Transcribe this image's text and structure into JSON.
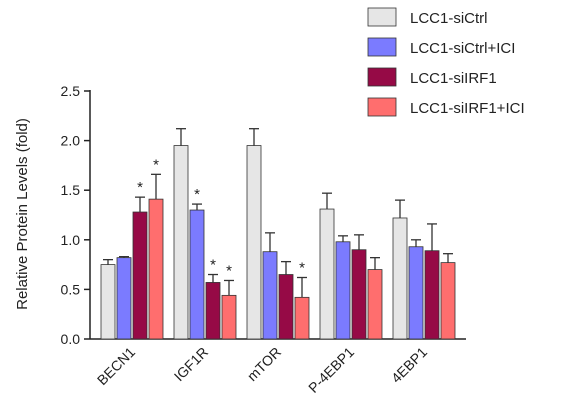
{
  "chart_data": {
    "type": "bar",
    "ylabel": "Relative Protein Levels (fold)",
    "xlabel": "",
    "ylim": [
      0,
      2.5
    ],
    "yticks": [
      "0.0",
      "0.5",
      "1.0",
      "1.5",
      "2.0",
      "2.5"
    ],
    "grid": false,
    "legend_position": "top-right",
    "categories": [
      "BECN1",
      "IGF1R",
      "mTOR",
      "P-4EBP1",
      "4EBP1"
    ],
    "series": [
      {
        "name": "LCC1-siCtrl",
        "color": "#e6e6e6",
        "values": [
          0.75,
          1.95,
          1.95,
          1.31,
          1.22
        ],
        "errors": [
          0.05,
          0.17,
          0.17,
          0.16,
          0.18
        ],
        "marks": [
          "",
          "",
          "",
          "",
          ""
        ]
      },
      {
        "name": "LCC1-siCtrl+ICI",
        "color": "#7b7bff",
        "values": [
          0.82,
          1.3,
          0.88,
          0.98,
          0.93
        ],
        "errors": [
          0.01,
          0.06,
          0.19,
          0.06,
          0.07
        ],
        "marks": [
          "",
          "*",
          "",
          "",
          ""
        ]
      },
      {
        "name": "LCC1-siIRF1",
        "color": "#960a46",
        "values": [
          1.28,
          0.57,
          0.65,
          0.9,
          0.89
        ],
        "errors": [
          0.15,
          0.08,
          0.13,
          0.15,
          0.27
        ],
        "marks": [
          "*",
          "*",
          "",
          "",
          ""
        ]
      },
      {
        "name": "LCC1-siIRF1+ICI",
        "color": "#ff6e6e",
        "values": [
          1.41,
          0.44,
          0.42,
          0.7,
          0.77
        ],
        "errors": [
          0.25,
          0.15,
          0.2,
          0.12,
          0.09
        ],
        "marks": [
          "*",
          "*",
          "*",
          "",
          ""
        ]
      }
    ]
  }
}
